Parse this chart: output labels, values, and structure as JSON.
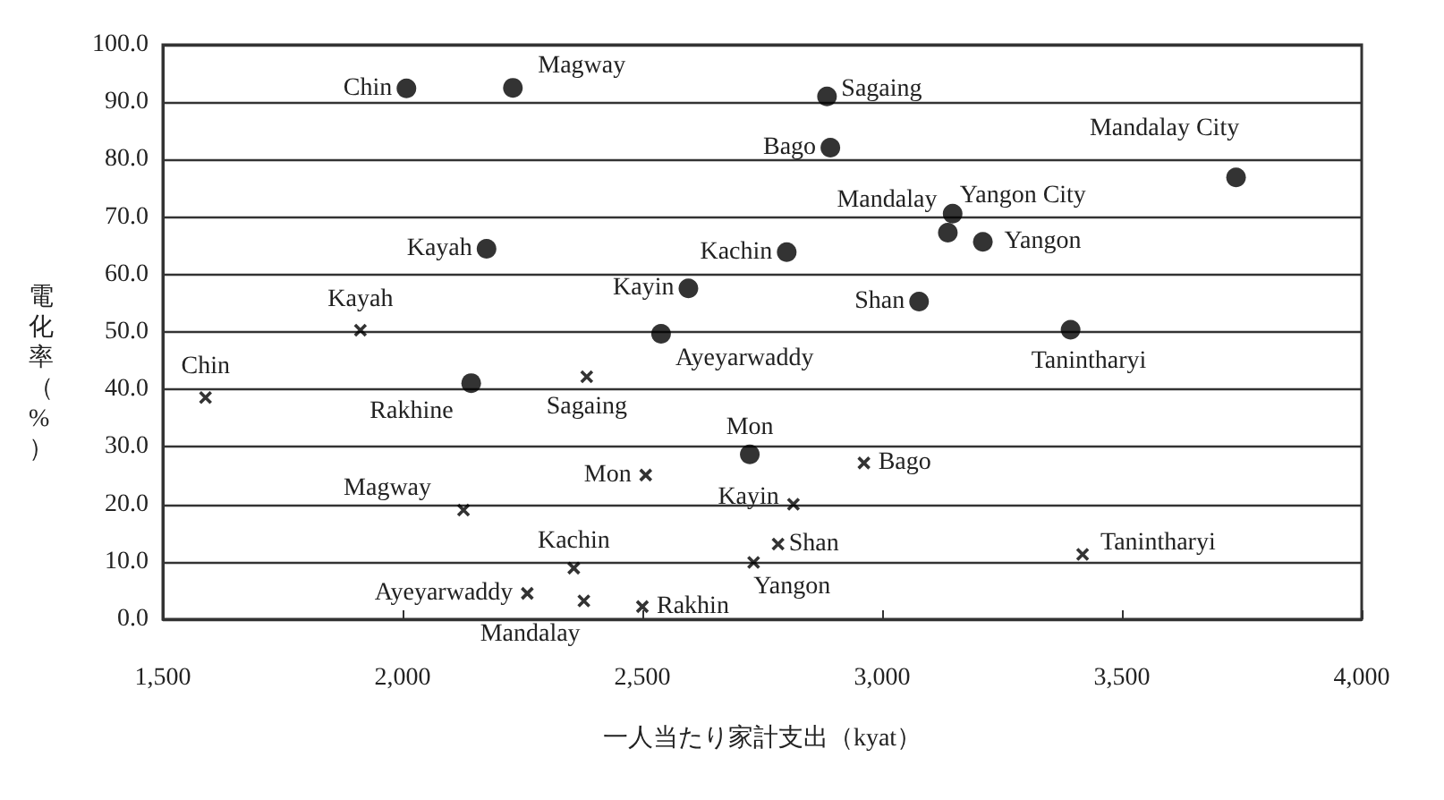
{
  "chart_data": {
    "type": "scatter",
    "xlabel": "一人当たり家計支出（kyat）",
    "ylabel": "電化率（%）",
    "xlim": [
      1500,
      4000
    ],
    "xticks": [
      {
        "value": 1500,
        "label": "1,500"
      },
      {
        "value": 2000,
        "label": "2,000"
      },
      {
        "value": 2500,
        "label": "2,500"
      },
      {
        "value": 3000,
        "label": "3,000"
      },
      {
        "value": 3500,
        "label": "3,500"
      },
      {
        "value": 4000,
        "label": "4,000"
      }
    ],
    "ylim": [
      0,
      100
    ],
    "yticks": [
      {
        "value": 0,
        "label": "0.0"
      },
      {
        "value": 10,
        "label": "10.0"
      },
      {
        "value": 20,
        "label": "20.0"
      },
      {
        "value": 30,
        "label": "30.0"
      },
      {
        "value": 40,
        "label": "40.0"
      },
      {
        "value": 50,
        "label": "50.0"
      },
      {
        "value": 60,
        "label": "60.0"
      },
      {
        "value": 70,
        "label": "70.0"
      },
      {
        "value": 80,
        "label": "80.0"
      },
      {
        "value": 90,
        "label": "90.0"
      },
      {
        "value": 100,
        "label": "100.0"
      }
    ],
    "grid": "y",
    "series": [
      {
        "marker": "circle",
        "color": "#000000",
        "x": [
          2008,
          2230,
          2175,
          2801,
          2596,
          2539,
          2143,
          2885,
          2892,
          3738,
          3147,
          3137,
          3210,
          3077,
          3393,
          2724
        ],
        "values": [
          92.4,
          92.5,
          64.5,
          63.9,
          57.6,
          49.7,
          41.1,
          91.0,
          82.1,
          76.9,
          70.6,
          67.3,
          65.7,
          55.3,
          50.4,
          28.7
        ]
      },
      {
        "marker": "cross",
        "color": "#000000",
        "x": [
          1589,
          1912,
          2384,
          2127,
          2507,
          2357,
          2260,
          2378,
          2500,
          2732,
          2815,
          2783,
          2962,
          3418
        ],
        "values": [
          38.6,
          50.3,
          42.2,
          19.0,
          25.1,
          8.9,
          4.5,
          3.2,
          2.2,
          9.9,
          20.0,
          13.1,
          27.2,
          11.3
        ]
      }
    ],
    "annotations": [
      {
        "text": "Chin",
        "x": 2008,
        "y": 92.4
      },
      {
        "text": "Magway",
        "x": 2230,
        "y": 92.5
      },
      {
        "text": "Kayah",
        "x": 2175,
        "y": 64.5
      },
      {
        "text": "Kachin",
        "x": 2801,
        "y": 63.9
      },
      {
        "text": "Kayin",
        "x": 2596,
        "y": 57.6
      },
      {
        "text": "Ayeyarwaddy",
        "x": 2539,
        "y": 49.7
      },
      {
        "text": "Rakhine",
        "x": 2143,
        "y": 41.1
      },
      {
        "text": "Sagaing",
        "x": 2885,
        "y": 91.0
      },
      {
        "text": "Bago",
        "x": 2892,
        "y": 82.1
      },
      {
        "text": "Mandalay City",
        "x": 3738,
        "y": 76.9
      },
      {
        "text": "Yangon City",
        "x": 3147,
        "y": 70.6
      },
      {
        "text": "Mandalay",
        "x": 3137,
        "y": 67.3
      },
      {
        "text": "Yangon",
        "x": 3210,
        "y": 65.7
      },
      {
        "text": "Shan",
        "x": 3077,
        "y": 55.3
      },
      {
        "text": "Tanintharyi",
        "x": 3393,
        "y": 50.4
      },
      {
        "text": "Mon",
        "x": 2724,
        "y": 28.7
      },
      {
        "text": "Chin",
        "x": 1589,
        "y": 38.6
      },
      {
        "text": "Kayah",
        "x": 1912,
        "y": 50.3
      },
      {
        "text": "Sagaing",
        "x": 2384,
        "y": 42.2
      },
      {
        "text": "Magway",
        "x": 2127,
        "y": 19.0
      },
      {
        "text": "Mon",
        "x": 2507,
        "y": 25.1
      },
      {
        "text": "Kachin",
        "x": 2357,
        "y": 8.9
      },
      {
        "text": "Ayeyarwaddy",
        "x": 2260,
        "y": 4.5
      },
      {
        "text": "Mandalay",
        "x": 2378,
        "y": 3.2
      },
      {
        "text": "Rakhin",
        "x": 2500,
        "y": 2.2
      },
      {
        "text": "Yangon",
        "x": 2732,
        "y": 9.9
      },
      {
        "text": "Kayin",
        "x": 2815,
        "y": 20.0
      },
      {
        "text": "Shan",
        "x": 2783,
        "y": 13.1
      },
      {
        "text": "Bago",
        "x": 2962,
        "y": 27.2
      },
      {
        "text": "Tanintharyi",
        "x": 3418,
        "y": 11.3
      }
    ]
  }
}
